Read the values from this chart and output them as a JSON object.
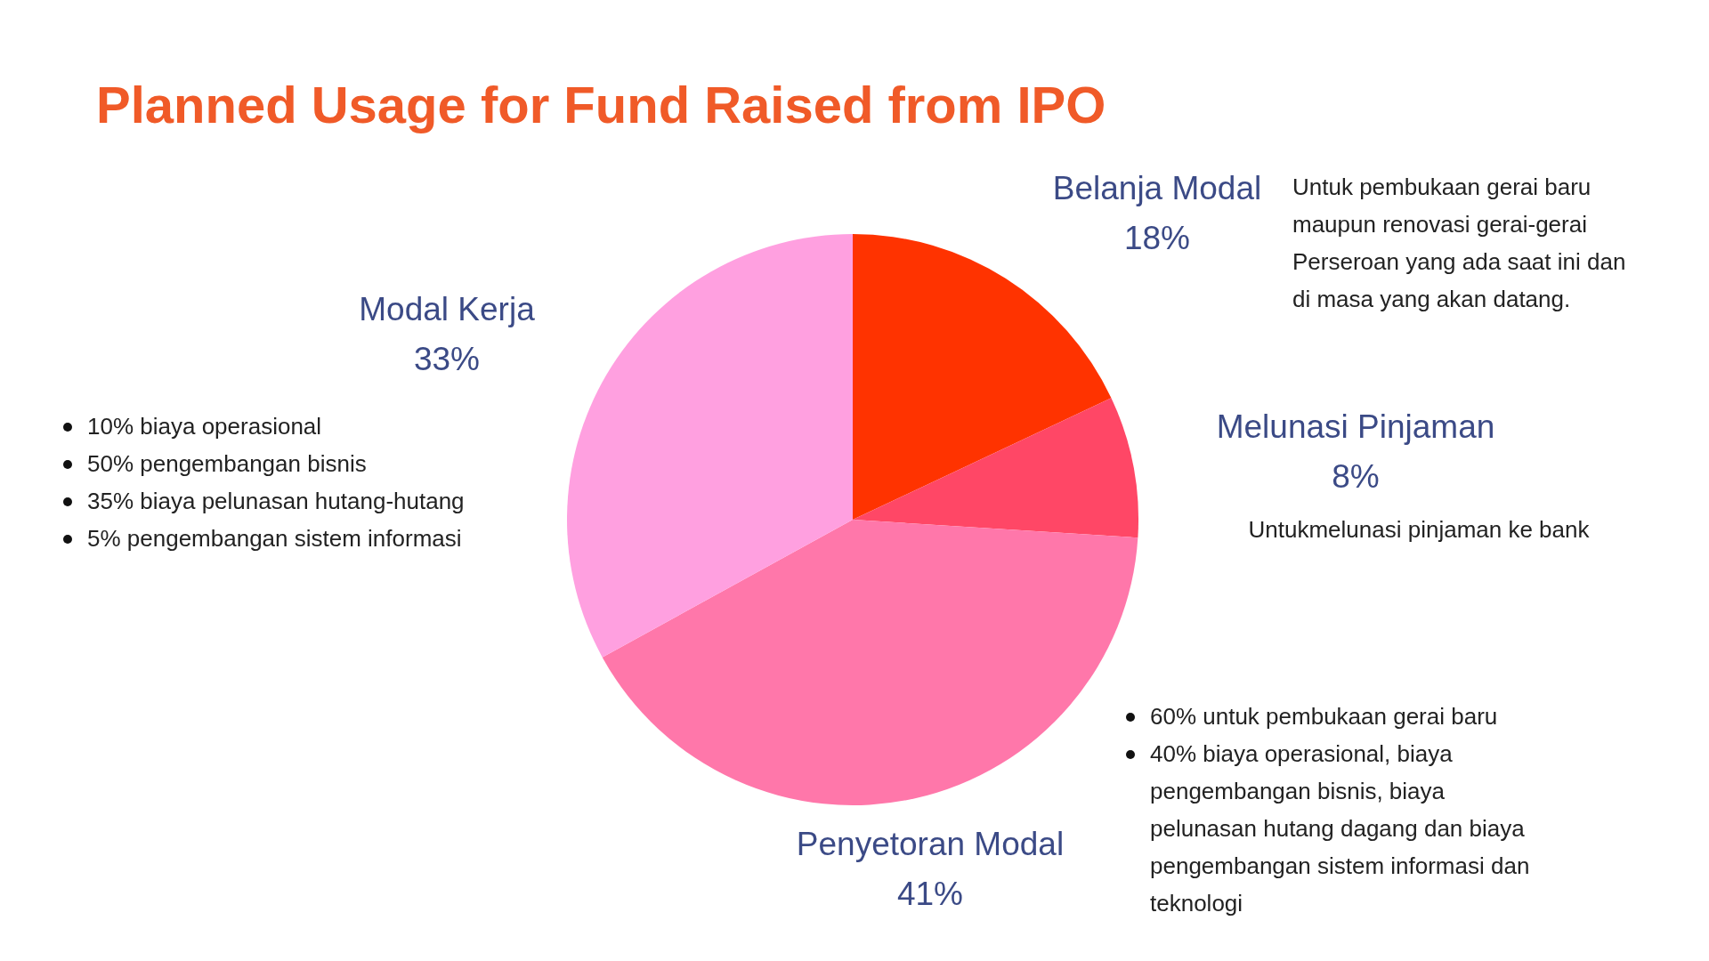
{
  "chart_data": {
    "type": "pie",
    "title": "Planned Usage for Fund Raised from IPO",
    "categories": [
      "Belanja Modal",
      "Melunasi Pinjaman",
      "Penyetoran Modal",
      "Modal Kerja"
    ],
    "values": [
      18,
      8,
      41,
      33
    ],
    "value_labels": [
      "18%",
      "8%",
      "41%",
      "33%"
    ],
    "colors": [
      "#ff3300",
      "#ff4766",
      "#ff77aa",
      "#ffa0e0"
    ],
    "annotations": [
      "Untuk pembukaan gerai baru maupun renovasi gerai-gerai Perseroan yang ada saat ini dan di masa yang akan datang.",
      "Untukmelunasi pinjaman ke bank",
      "10% biaya operasional",
      "50% pengembangan bisnis",
      "35% biaya pelunasan hutang-hutang",
      "5% pengembangan sistem informasi",
      "60% untuk pembukaan gerai baru",
      "40% biaya operasional, biaya pengembangan bisnis, biaya pelunasan hutang dagang dan biaya pengembangan sistem informasi dan teknologi"
    ]
  }
}
